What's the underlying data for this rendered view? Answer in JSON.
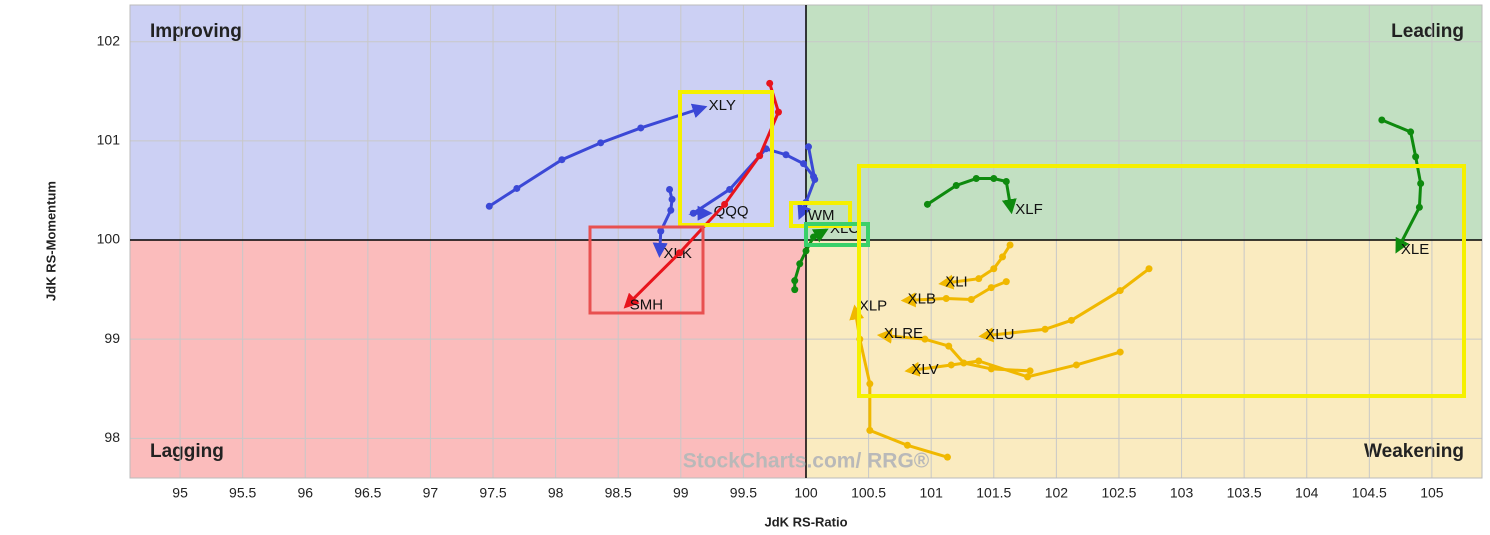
{
  "chart_data": {
    "type": "line",
    "x_label": "JdK RS-Ratio",
    "y_label": "JdK RS-Momentum",
    "watermark": "StockCharts.com/ RRG®",
    "xlim": [
      94.6,
      105.4
    ],
    "ylim": [
      97.6,
      102.37
    ],
    "xticks": [
      95,
      95.5,
      96,
      96.5,
      97,
      97.5,
      98,
      98.5,
      99,
      99.5,
      100,
      100.5,
      101,
      101.5,
      102,
      102.5,
      103,
      103.5,
      104,
      104.5,
      105
    ],
    "yticks": [
      98,
      99,
      100,
      101,
      102
    ],
    "grid": true,
    "center": [
      100,
      100
    ],
    "quadrants": [
      {
        "label": "Improving",
        "corner": "top-left",
        "color": "#ccd0f4",
        "text_color": "#3b48d6"
      },
      {
        "label": "Leading",
        "corner": "top-right",
        "color": "#c2e0c2",
        "text_color": "#0e8a0e"
      },
      {
        "label": "Lagging",
        "corner": "bottom-left",
        "color": "#fbbcbc",
        "text_color": "#e8141c"
      },
      {
        "label": "Weakening",
        "corner": "bottom-right",
        "color": "#faebc0",
        "text_color": "#f0b800"
      }
    ],
    "series": [
      {
        "name": "XLY",
        "color": "#3b48d6",
        "x": [
          97.47,
          97.69,
          98.05,
          98.36,
          98.68,
          99.19
        ],
        "y": [
          100.34,
          100.52,
          100.81,
          100.98,
          101.13,
          101.34
        ]
      },
      {
        "name": "QQQ",
        "color": "#3b48d6",
        "x": [
          100.06,
          99.98,
          99.84,
          99.68,
          99.39,
          99.1,
          99.23
        ],
        "y": [
          100.64,
          100.77,
          100.86,
          100.92,
          100.51,
          100.27,
          100.27
        ]
      },
      {
        "name": "XLK",
        "color": "#3b48d6",
        "x": [
          98.91,
          98.93,
          98.92,
          98.84,
          98.83
        ],
        "y": [
          100.51,
          100.41,
          100.3,
          100.09,
          99.85
        ]
      },
      {
        "name": "SMH",
        "color": "#e8141c",
        "x": [
          99.71,
          99.78,
          99.63,
          99.35,
          98.99,
          98.56
        ],
        "y": [
          101.58,
          101.29,
          100.85,
          100.36,
          99.87,
          99.33
        ]
      },
      {
        "name": "IWM",
        "color": "#3b48d6",
        "x": [
          100.02,
          100.07,
          100.0,
          99.95
        ],
        "y": [
          100.94,
          100.61,
          100.38,
          100.23
        ]
      },
      {
        "name": "XLC",
        "color": "#0e8a0e",
        "x": [
          99.91,
          99.91,
          99.95,
          100.0,
          100.06,
          100.16
        ],
        "y": [
          99.5,
          99.59,
          99.76,
          99.89,
          100.03,
          100.1
        ]
      },
      {
        "name": "XLF",
        "color": "#0e8a0e",
        "x": [
          100.97,
          101.2,
          101.36,
          101.5,
          101.6,
          101.64
        ],
        "y": [
          100.36,
          100.55,
          100.62,
          100.62,
          100.59,
          100.29
        ]
      },
      {
        "name": "XLE",
        "color": "#0e8a0e",
        "x": [
          104.6,
          104.83,
          104.87,
          104.91,
          104.9,
          104.72
        ],
        "y": [
          101.21,
          101.09,
          100.84,
          100.57,
          100.33,
          99.89
        ]
      },
      {
        "name": "XLI",
        "color": "#f0b800",
        "x": [
          101.63,
          101.57,
          101.5,
          101.38,
          101.08
        ],
        "y": [
          99.95,
          99.83,
          99.71,
          99.61,
          99.56
        ]
      },
      {
        "name": "XLB",
        "color": "#f0b800",
        "x": [
          101.6,
          101.48,
          101.32,
          101.12,
          100.78
        ],
        "y": [
          99.58,
          99.52,
          99.4,
          99.41,
          99.39
        ]
      },
      {
        "name": "XLU",
        "color": "#f0b800",
        "x": [
          102.74,
          102.51,
          102.12,
          101.91,
          101.4
        ],
        "y": [
          99.71,
          99.49,
          99.19,
          99.1,
          99.03
        ]
      },
      {
        "name": "XLV",
        "color": "#f0b800",
        "x": [
          102.51,
          102.16,
          101.77,
          101.38,
          101.16,
          100.81
        ],
        "y": [
          98.87,
          98.74,
          98.62,
          98.78,
          98.74,
          98.68
        ]
      },
      {
        "name": "XLRE",
        "color": "#f0b800",
        "x": [
          101.79,
          101.48,
          101.26,
          101.14,
          100.95,
          100.59
        ],
        "y": [
          98.68,
          98.7,
          98.76,
          98.93,
          99.0,
          99.04
        ]
      },
      {
        "name": "XLP",
        "color": "#f0b800",
        "x": [
          101.13,
          100.81,
          100.51,
          100.51,
          100.43,
          100.39
        ],
        "y": [
          97.81,
          97.93,
          98.08,
          98.55,
          99.0,
          99.32
        ]
      }
    ]
  }
}
